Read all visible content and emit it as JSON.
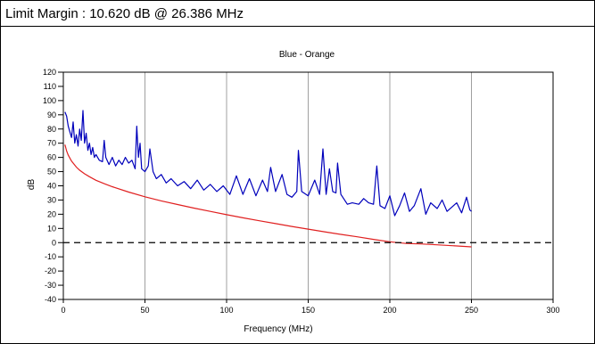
{
  "header": {
    "limit_margin": "Limit Margin : 10.620 dB @ 26.386 MHz"
  },
  "chart_data": {
    "type": "line",
    "title": "Blue - Orange",
    "xlabel": "Frequency (MHz)",
    "ylabel": "dB",
    "xlim": [
      0,
      300
    ],
    "ylim": [
      -40,
      120
    ],
    "xticks": [
      0,
      50,
      100,
      150,
      200,
      250,
      300
    ],
    "yticks": [
      -40,
      -30,
      -20,
      -10,
      0,
      10,
      20,
      30,
      40,
      50,
      60,
      70,
      80,
      90,
      100,
      110,
      120
    ],
    "grid": true,
    "colors": {
      "measured": "#0000bb",
      "limit": "#e02020",
      "reference": "#000000"
    },
    "series": [
      {
        "values": [
          [
            1,
            92
          ],
          [
            2,
            89
          ],
          [
            3,
            82
          ],
          [
            4,
            78
          ],
          [
            5,
            74
          ],
          [
            6,
            85
          ],
          [
            7,
            70
          ],
          [
            8,
            76
          ],
          [
            9,
            68
          ],
          [
            10,
            80
          ],
          [
            11,
            72
          ],
          [
            12,
            93
          ],
          [
            13,
            70
          ],
          [
            14,
            77
          ],
          [
            15,
            65
          ],
          [
            16,
            70
          ],
          [
            17,
            62
          ],
          [
            18,
            67
          ],
          [
            19,
            60
          ],
          [
            20,
            62
          ],
          [
            22,
            58
          ],
          [
            24,
            57
          ],
          [
            25,
            72
          ],
          [
            26,
            60
          ],
          [
            28,
            55
          ],
          [
            30,
            60
          ],
          [
            32,
            54
          ],
          [
            34,
            58
          ],
          [
            36,
            55
          ],
          [
            38,
            60
          ],
          [
            40,
            56
          ],
          [
            42,
            58
          ],
          [
            44,
            52
          ],
          [
            45,
            82
          ],
          [
            46,
            60
          ],
          [
            47,
            70
          ],
          [
            48,
            52
          ],
          [
            50,
            50
          ],
          [
            52,
            54
          ],
          [
            53,
            66
          ],
          [
            55,
            50
          ],
          [
            57,
            45
          ],
          [
            60,
            48
          ],
          [
            63,
            42
          ],
          [
            66,
            45
          ],
          [
            70,
            40
          ],
          [
            74,
            43
          ],
          [
            78,
            38
          ],
          [
            82,
            44
          ],
          [
            86,
            37
          ],
          [
            90,
            41
          ],
          [
            94,
            36
          ],
          [
            98,
            40
          ],
          [
            102,
            34
          ],
          [
            106,
            47
          ],
          [
            110,
            34
          ],
          [
            114,
            45
          ],
          [
            118,
            33
          ],
          [
            122,
            44
          ],
          [
            125,
            36
          ],
          [
            127,
            53
          ],
          [
            130,
            36
          ],
          [
            134,
            48
          ],
          [
            137,
            34
          ],
          [
            140,
            32
          ],
          [
            143,
            36
          ],
          [
            144,
            65
          ],
          [
            146,
            36
          ],
          [
            150,
            33
          ],
          [
            154,
            44
          ],
          [
            157,
            34
          ],
          [
            159,
            66
          ],
          [
            161,
            34
          ],
          [
            163,
            52
          ],
          [
            165,
            36
          ],
          [
            167,
            35
          ],
          [
            168,
            56
          ],
          [
            170,
            34
          ],
          [
            174,
            27
          ],
          [
            177,
            28
          ],
          [
            181,
            27
          ],
          [
            184,
            31
          ],
          [
            187,
            28
          ],
          [
            190,
            27
          ],
          [
            192,
            54
          ],
          [
            194,
            26
          ],
          [
            197,
            24
          ],
          [
            200,
            33
          ],
          [
            203,
            19
          ],
          [
            206,
            26
          ],
          [
            209,
            35
          ],
          [
            212,
            22
          ],
          [
            215,
            26
          ],
          [
            219,
            38
          ],
          [
            222,
            20
          ],
          [
            225,
            28
          ],
          [
            229,
            24
          ],
          [
            232,
            30
          ],
          [
            235,
            22
          ],
          [
            238,
            25
          ],
          [
            241,
            28
          ],
          [
            244,
            21
          ],
          [
            247,
            32
          ],
          [
            249,
            23
          ],
          [
            250,
            22
          ]
        ]
      },
      {
        "values": [
          [
            1,
            69
          ],
          [
            2,
            64.5
          ],
          [
            3,
            61.6
          ],
          [
            5,
            57.4
          ],
          [
            8,
            53.2
          ],
          [
            10,
            51
          ],
          [
            13,
            48.5
          ],
          [
            16,
            46.4
          ],
          [
            20,
            43.9
          ],
          [
            25,
            41.5
          ],
          [
            30,
            39.4
          ],
          [
            40,
            35.6
          ],
          [
            50,
            32.3
          ],
          [
            60,
            29.4
          ],
          [
            70,
            26.8
          ],
          [
            80,
            24.3
          ],
          [
            90,
            22
          ],
          [
            100,
            19.7
          ],
          [
            110,
            17.5
          ],
          [
            120,
            15.4
          ],
          [
            130,
            13.4
          ],
          [
            140,
            11.4
          ],
          [
            150,
            9.5
          ],
          [
            160,
            7.6
          ],
          [
            170,
            5.8
          ],
          [
            180,
            4.1
          ],
          [
            190,
            2.3
          ],
          [
            200,
            0.6
          ],
          [
            210,
            -0.6
          ],
          [
            220,
            -1
          ],
          [
            230,
            -1.6
          ],
          [
            240,
            -2.3
          ],
          [
            250,
            -3
          ]
        ]
      },
      {
        "values": [
          [
            0,
            0
          ],
          [
            300,
            0
          ]
        ]
      }
    ]
  }
}
